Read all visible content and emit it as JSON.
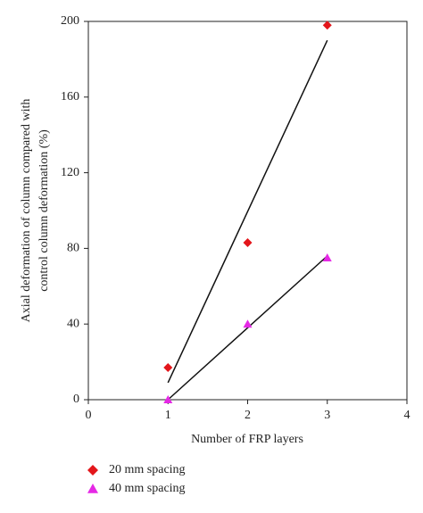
{
  "chart_data": {
    "type": "scatter",
    "y_label": [
      "Axial deformation of column compared with",
      "control column deformation (%)"
    ],
    "x_label": "Number of FRP layers",
    "xlim": [
      0,
      4
    ],
    "xticks": [
      0,
      1,
      2,
      3,
      4
    ],
    "ylim": [
      0,
      200
    ],
    "yticks": [
      0,
      40,
      80,
      120,
      160,
      200
    ],
    "series": [
      {
        "name": "20 mm spacing",
        "color": "#e3161b",
        "marker": "diamond",
        "x": [
          1,
          2,
          3
        ],
        "values": [
          17,
          83,
          198
        ],
        "trendline": {
          "x": [
            1,
            3
          ],
          "values": [
            9,
            190
          ]
        }
      },
      {
        "name": "40 mm spacing",
        "color": "#e528e5",
        "marker": "triangle",
        "x": [
          1,
          2,
          3
        ],
        "values": [
          0,
          40,
          75
        ],
        "trendline": {
          "x": [
            1,
            3
          ],
          "values": [
            0,
            76
          ]
        }
      }
    ]
  }
}
